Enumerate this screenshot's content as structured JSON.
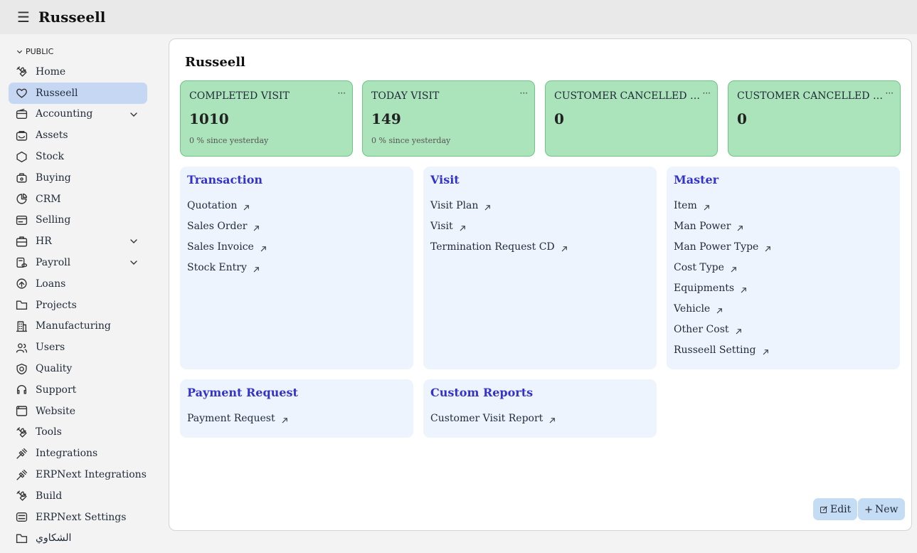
{
  "topbar": {
    "menu_icon": "hamburger-icon",
    "title": "Russeell"
  },
  "sidebar": {
    "section_label": "PUBLIC",
    "items": [
      {
        "label": "Home",
        "icon": "tools-icon",
        "active": false,
        "expandable": false
      },
      {
        "label": "Russeell",
        "icon": "heart-icon",
        "active": true,
        "expandable": false
      },
      {
        "label": "Accounting",
        "icon": "wallet-icon",
        "active": false,
        "expandable": true
      },
      {
        "label": "Assets",
        "icon": "assets-icon",
        "active": false,
        "expandable": false
      },
      {
        "label": "Stock",
        "icon": "hexagon-icon",
        "active": false,
        "expandable": false
      },
      {
        "label": "Buying",
        "icon": "basket-icon",
        "active": false,
        "expandable": false
      },
      {
        "label": "CRM",
        "icon": "pie-chart-icon",
        "active": false,
        "expandable": false
      },
      {
        "label": "Selling",
        "icon": "card-icon",
        "active": false,
        "expandable": false
      },
      {
        "label": "HR",
        "icon": "briefcase-icon",
        "active": false,
        "expandable": true
      },
      {
        "label": "Payroll",
        "icon": "payroll-icon",
        "active": false,
        "expandable": true
      },
      {
        "label": "Loans",
        "icon": "loan-icon",
        "active": false,
        "expandable": false
      },
      {
        "label": "Projects",
        "icon": "folder-icon",
        "active": false,
        "expandable": false
      },
      {
        "label": "Manufacturing",
        "icon": "building-icon",
        "active": false,
        "expandable": false
      },
      {
        "label": "Users",
        "icon": "users-icon",
        "active": false,
        "expandable": false
      },
      {
        "label": "Quality",
        "icon": "shield-icon",
        "active": false,
        "expandable": false
      },
      {
        "label": "Support",
        "icon": "headset-icon",
        "active": false,
        "expandable": false
      },
      {
        "label": "Website",
        "icon": "browser-icon",
        "active": false,
        "expandable": false
      },
      {
        "label": "Tools",
        "icon": "tools-icon",
        "active": false,
        "expandable": false
      },
      {
        "label": "Integrations",
        "icon": "plug-icon",
        "active": false,
        "expandable": false
      },
      {
        "label": "ERPNext Integrations",
        "icon": "plug-icon",
        "active": false,
        "expandable": false
      },
      {
        "label": "Build",
        "icon": "tools-icon",
        "active": false,
        "expandable": false
      },
      {
        "label": "ERPNext Settings",
        "icon": "settings-icon",
        "active": false,
        "expandable": false
      },
      {
        "label": "الشكاوي",
        "icon": "folder-icon",
        "active": false,
        "expandable": false
      }
    ]
  },
  "main": {
    "title": "Russeell",
    "stats": [
      {
        "label": "COMPLETED VISIT",
        "value": "1010",
        "sub": "0 % since yesterday"
      },
      {
        "label": "TODAY VISIT",
        "value": "149",
        "sub": "0 % since yesterday"
      },
      {
        "label": "CUSTOMER CANCELLED VISIT",
        "value": "0",
        "sub": ""
      },
      {
        "label": "CUSTOMER CANCELLED VISIT",
        "value": "0",
        "sub": ""
      }
    ],
    "stat_menu_glyph": "···",
    "cards": [
      {
        "title": "Transaction",
        "links": [
          "Quotation",
          "Sales Order",
          "Sales Invoice",
          "Stock Entry"
        ]
      },
      {
        "title": "Visit",
        "links": [
          "Visit Plan",
          "Visit",
          "Termination Request CD"
        ]
      },
      {
        "title": "Master",
        "links": [
          "Item",
          "Man Power",
          "Man Power Type",
          "Cost Type",
          "Equipments",
          "Vehicle",
          "Other Cost",
          "Russeell Setting"
        ]
      },
      {
        "title": "Payment Request",
        "links": [
          "Payment Request"
        ]
      },
      {
        "title": "Custom Reports",
        "links": [
          "Customer Visit Report"
        ]
      }
    ],
    "edit_label": "Edit",
    "new_label": "New"
  },
  "colors": {
    "active_nav": "#c5d7f2",
    "stat_bg": "#abe3bb",
    "stat_border": "#6ec586",
    "card_bg": "#edf4fe",
    "card_title": "#3333cc",
    "button_bg": "#c5dcf5"
  }
}
